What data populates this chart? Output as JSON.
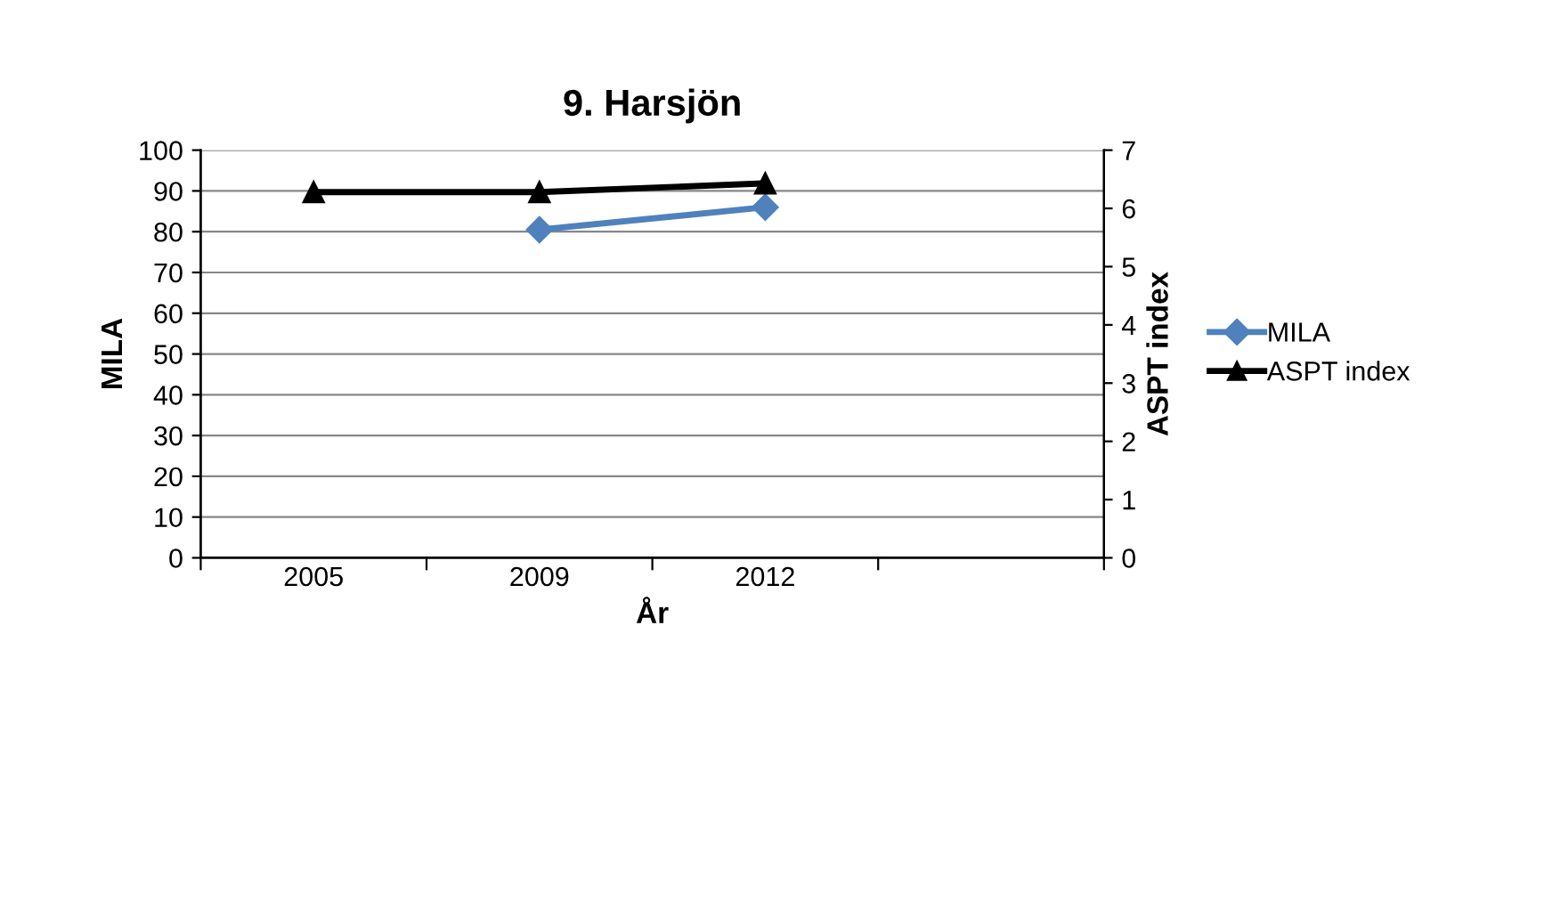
{
  "chart_data": {
    "type": "line",
    "title": "9. Harsjön",
    "xlabel": "År",
    "ylabel": "MILA",
    "y2label": "ASPT index",
    "categories": [
      "2005",
      "2009",
      "2012"
    ],
    "series": [
      {
        "name": "MILA",
        "color": "#4f81bd",
        "values": [
          null,
          80.5,
          86
        ],
        "marker": "diamond"
      },
      {
        "name": "ASPT index",
        "color": "#000000",
        "values": [
          6.28,
          6.28,
          6.43
        ],
        "axis": "y2",
        "marker": "triangle"
      }
    ],
    "ylim": [
      0,
      100
    ],
    "yticks": [
      0,
      10,
      20,
      30,
      40,
      50,
      60,
      70,
      80,
      90,
      100
    ],
    "y2lim": [
      0,
      7
    ],
    "y2ticks": [
      0,
      1,
      2,
      3,
      4,
      5,
      6,
      7
    ],
    "grid": "y",
    "legend": "right",
    "line_style": "solid"
  }
}
